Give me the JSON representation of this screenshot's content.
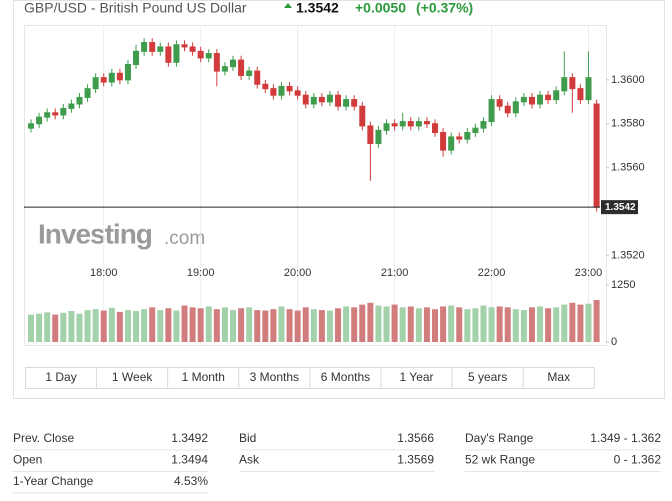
{
  "header": {
    "title": "GBP/USD - British Pound US Dollar",
    "price": "1.3542",
    "change": "+0.0050",
    "change_percent": "(+0.37%)"
  },
  "chart_data": {
    "type": "candlestick",
    "categories": [
      null,
      null,
      null,
      null,
      null,
      null,
      null,
      null,
      null,
      "18:00",
      null,
      null,
      null,
      null,
      null,
      null,
      null,
      null,
      null,
      null,
      null,
      "19:00",
      null,
      null,
      null,
      null,
      null,
      null,
      null,
      null,
      null,
      null,
      null,
      "20:00",
      null,
      null,
      null,
      null,
      null,
      null,
      null,
      null,
      null,
      null,
      null,
      "21:00",
      null,
      null,
      null,
      null,
      null,
      null,
      null,
      null,
      null,
      null,
      null,
      "22:00",
      null,
      null,
      null,
      null,
      null,
      null,
      null,
      null,
      null,
      null,
      null,
      "23:00",
      null
    ],
    "open": [
      1.3578,
      1.358,
      1.3583,
      1.3585,
      1.3584,
      1.3587,
      1.3589,
      1.3592,
      1.3596,
      1.3601,
      1.3599,
      1.3603,
      1.36,
      1.3607,
      1.3613,
      1.3617,
      1.3613,
      1.3615,
      1.3608,
      1.3616,
      1.3615,
      1.3613,
      1.361,
      1.3612,
      1.3604,
      1.3606,
      1.3609,
      1.3602,
      1.3604,
      1.3598,
      1.3596,
      1.3593,
      1.3597,
      1.3595,
      1.3593,
      1.3589,
      1.3592,
      1.359,
      1.3593,
      1.3588,
      1.3591,
      1.3588,
      1.3579,
      1.3571,
      1.3577,
      1.358,
      1.3579,
      1.3581,
      1.3579,
      1.3581,
      1.358,
      1.3576,
      1.3568,
      1.3574,
      1.3573,
      1.3576,
      1.3578,
      1.3581,
      1.3591,
      1.3588,
      1.3585,
      1.359,
      1.3592,
      1.3589,
      1.3593,
      1.3591,
      1.3595,
      1.3601,
      1.3596,
      1.3591,
      1.3589
    ],
    "high": [
      1.3582,
      1.3585,
      1.3587,
      1.3587,
      1.3589,
      1.3591,
      1.3594,
      1.3598,
      1.3603,
      1.3603,
      1.3605,
      1.3605,
      1.3609,
      1.3616,
      1.3619,
      1.3619,
      1.3617,
      1.3617,
      1.3618,
      1.3618,
      1.3617,
      1.3615,
      1.3614,
      1.3614,
      1.3608,
      1.3611,
      1.3611,
      1.3606,
      1.3606,
      1.36,
      1.3598,
      1.3599,
      1.3599,
      1.3597,
      1.3595,
      1.3594,
      1.3594,
      1.3595,
      1.3595,
      1.3593,
      1.3593,
      1.359,
      1.3581,
      1.3579,
      1.3582,
      1.3582,
      1.3585,
      1.3583,
      1.3583,
      1.3583,
      1.3582,
      1.3578,
      1.3576,
      1.3576,
      1.3578,
      1.358,
      1.3583,
      1.3593,
      1.3593,
      1.359,
      1.3592,
      1.3594,
      1.3594,
      1.3595,
      1.3595,
      1.3597,
      1.3613,
      1.3603,
      1.3598,
      1.3613,
      1.3591
    ],
    "low": [
      1.3576,
      1.3578,
      1.3581,
      1.3582,
      1.3582,
      1.3585,
      1.3587,
      1.359,
      1.3594,
      1.3597,
      1.3597,
      1.3598,
      1.3598,
      1.3605,
      1.3611,
      1.3611,
      1.3611,
      1.3606,
      1.3606,
      1.3613,
      1.3611,
      1.3608,
      1.3608,
      1.3597,
      1.3602,
      1.3604,
      1.36,
      1.36,
      1.3596,
      1.3594,
      1.3591,
      1.3591,
      1.3593,
      1.3591,
      1.3587,
      1.3587,
      1.3588,
      1.3588,
      1.3586,
      1.3586,
      1.3586,
      1.3577,
      1.3554,
      1.3569,
      1.3575,
      1.3577,
      1.3577,
      1.3577,
      1.3577,
      1.3578,
      1.3574,
      1.3565,
      1.3566,
      1.3571,
      1.3571,
      1.3574,
      1.3576,
      1.3579,
      1.3586,
      1.3583,
      1.3583,
      1.3588,
      1.3587,
      1.3587,
      1.3589,
      1.3589,
      1.3593,
      1.3585,
      1.3589,
      1.3589,
      1.354
    ],
    "close": [
      1.358,
      1.3583,
      1.3585,
      1.3584,
      1.3587,
      1.3589,
      1.3592,
      1.3596,
      1.3601,
      1.3599,
      1.3603,
      1.36,
      1.3607,
      1.3613,
      1.3617,
      1.3613,
      1.3615,
      1.3608,
      1.3616,
      1.3615,
      1.3613,
      1.361,
      1.3612,
      1.3604,
      1.3606,
      1.3609,
      1.3602,
      1.3604,
      1.3598,
      1.3596,
      1.3593,
      1.3597,
      1.3595,
      1.3593,
      1.3589,
      1.3592,
      1.359,
      1.3593,
      1.3588,
      1.3591,
      1.3588,
      1.3579,
      1.3571,
      1.3577,
      1.358,
      1.3579,
      1.3581,
      1.3579,
      1.3581,
      1.358,
      1.3576,
      1.3568,
      1.3574,
      1.3573,
      1.3576,
      1.3578,
      1.3581,
      1.3591,
      1.3588,
      1.3585,
      1.359,
      1.3592,
      1.3589,
      1.3593,
      1.3591,
      1.3595,
      1.3601,
      1.3596,
      1.3591,
      1.3601,
      1.3542
    ],
    "volume": [
      600,
      620,
      650,
      600,
      640,
      680,
      620,
      700,
      720,
      690,
      750,
      660,
      700,
      680,
      720,
      760,
      700,
      740,
      690,
      800,
      760,
      740,
      780,
      720,
      760,
      700,
      740,
      760,
      700,
      690,
      720,
      780,
      720,
      690,
      760,
      720,
      700,
      690,
      740,
      780,
      760,
      820,
      860,
      800,
      780,
      820,
      760,
      780,
      740,
      760,
      720,
      780,
      800,
      760,
      720,
      740,
      800,
      760,
      780,
      760,
      720,
      700,
      760,
      780,
      740,
      760,
      820,
      860,
      820,
      840,
      920
    ],
    "up_color": "#3e9c4c",
    "down_color": "#d23b3b",
    "volume_up_color": "#a3d1a9",
    "volume_down_color": "#d27d7d",
    "ylim": [
      1.3517,
      1.3625
    ],
    "yticks": [
      {
        "value": 1.36,
        "label": "1.3600"
      },
      {
        "value": 1.358,
        "label": "1.3580"
      },
      {
        "value": 1.356,
        "label": "1.3560"
      },
      {
        "value": 1.352,
        "label": "1.3520"
      }
    ],
    "y2lim": [
      0,
      1250
    ],
    "y2ticks": [
      0,
      1250
    ],
    "grid": true
  },
  "watermark": {
    "brand": "Investing",
    "suffix": ".com"
  },
  "tabs": [
    "1 Day",
    "1 Week",
    "1 Month",
    "3 Months",
    "6 Months",
    "1 Year",
    "5 years",
    "Max"
  ],
  "stats": [
    [
      {
        "label": "Prev. Close",
        "value": "1.3492"
      },
      {
        "label": "Bid",
        "value": "1.3566"
      },
      {
        "label": "Day's Range",
        "value": "1.349 - 1.362"
      }
    ],
    [
      {
        "label": "Open",
        "value": "1.3494"
      },
      {
        "label": "Ask",
        "value": "1.3569"
      },
      {
        "label": "52 wk Range",
        "value": "0 - 1.362"
      }
    ],
    [
      {
        "label": "1-Year Change",
        "value": "4.53%"
      }
    ]
  ]
}
